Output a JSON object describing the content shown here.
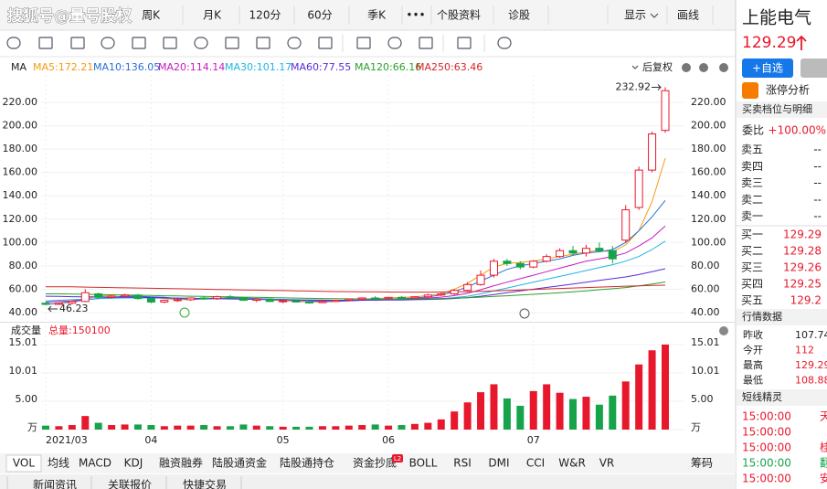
{
  "toolbar": {
    "watermark": "搜狐号@量号股权",
    "periods": [
      "周K",
      "月K",
      "120分",
      "60分",
      "季K"
    ],
    "more": "•••",
    "links": [
      "个股资料",
      "诊股"
    ],
    "display": "显示",
    "draw": "画线"
  },
  "chart_data": {
    "type": "candlestick",
    "indicator": "MA",
    "adjust": "后复权",
    "categories": [
      "2021/03",
      null,
      null,
      null,
      null,
      null,
      null,
      null,
      "04",
      null,
      null,
      null,
      null,
      null,
      null,
      null,
      null,
      null,
      "05",
      null,
      null,
      null,
      null,
      null,
      null,
      null,
      "06",
      null,
      null,
      null,
      null,
      null,
      null,
      null,
      null,
      null,
      null,
      "07",
      null,
      null,
      null,
      null,
      null,
      null,
      null,
      null,
      null,
      null
    ],
    "up_color": "#e8182c",
    "down_color": "#16a34a",
    "candles": [
      {
        "open": 48,
        "high": 49,
        "low": 46.23,
        "close": 47
      },
      {
        "open": 47,
        "high": 48.5,
        "low": 46.5,
        "close": 48
      },
      {
        "open": 48,
        "high": 50,
        "low": 47,
        "close": 49.5
      },
      {
        "open": 49.5,
        "high": 60,
        "low": 49,
        "close": 57
      },
      {
        "open": 56,
        "high": 57,
        "low": 52,
        "close": 53
      },
      {
        "open": 53,
        "high": 55,
        "low": 52,
        "close": 54
      },
      {
        "open": 54,
        "high": 56,
        "low": 53,
        "close": 55
      },
      {
        "open": 55,
        "high": 56,
        "low": 51,
        "close": 52
      },
      {
        "open": 52,
        "high": 53,
        "low": 48,
        "close": 49
      },
      {
        "open": 49,
        "high": 51,
        "low": 48,
        "close": 50.5
      },
      {
        "open": 50.5,
        "high": 52,
        "low": 49,
        "close": 51
      },
      {
        "open": 51,
        "high": 53,
        "low": 50,
        "close": 52.5
      },
      {
        "open": 52.5,
        "high": 54,
        "low": 51,
        "close": 52
      },
      {
        "open": 52,
        "high": 54.5,
        "low": 51,
        "close": 53.5
      },
      {
        "open": 53.5,
        "high": 55,
        "low": 52,
        "close": 52.5
      },
      {
        "open": 52.5,
        "high": 53,
        "low": 50,
        "close": 50.5
      },
      {
        "open": 50.5,
        "high": 52,
        "low": 49,
        "close": 51.5
      },
      {
        "open": 51.5,
        "high": 52,
        "low": 49,
        "close": 49.5
      },
      {
        "open": 49.5,
        "high": 51,
        "low": 48,
        "close": 50
      },
      {
        "open": 50,
        "high": 51,
        "low": 48.5,
        "close": 49
      },
      {
        "open": 49,
        "high": 50,
        "low": 47.5,
        "close": 48.5
      },
      {
        "open": 48.5,
        "high": 50,
        "low": 48,
        "close": 49.5
      },
      {
        "open": 49.5,
        "high": 51,
        "low": 49,
        "close": 50.5
      },
      {
        "open": 50.5,
        "high": 52,
        "low": 50,
        "close": 51.5
      },
      {
        "open": 51.5,
        "high": 53,
        "low": 50.5,
        "close": 52.5
      },
      {
        "open": 52.5,
        "high": 54,
        "low": 51.5,
        "close": 52
      },
      {
        "open": 52,
        "high": 53.5,
        "low": 51,
        "close": 53
      },
      {
        "open": 53,
        "high": 54,
        "low": 52,
        "close": 52.5
      },
      {
        "open": 52.5,
        "high": 54,
        "low": 52,
        "close": 53.5
      },
      {
        "open": 53.5,
        "high": 56,
        "low": 53,
        "close": 55
      },
      {
        "open": 55,
        "high": 57,
        "low": 54,
        "close": 56
      },
      {
        "open": 56,
        "high": 60,
        "low": 55,
        "close": 59
      },
      {
        "open": 59,
        "high": 66,
        "low": 58,
        "close": 64
      },
      {
        "open": 64,
        "high": 76,
        "low": 63,
        "close": 72
      },
      {
        "open": 72,
        "high": 86,
        "low": 70,
        "close": 84
      },
      {
        "open": 84,
        "high": 86,
        "low": 80,
        "close": 82
      },
      {
        "open": 82,
        "high": 84,
        "low": 77,
        "close": 79
      },
      {
        "open": 79,
        "high": 85,
        "low": 78,
        "close": 84
      },
      {
        "open": 84,
        "high": 90,
        "low": 83,
        "close": 88
      },
      {
        "open": 88,
        "high": 95,
        "low": 87,
        "close": 93
      },
      {
        "open": 93,
        "high": 97,
        "low": 89,
        "close": 91
      },
      {
        "open": 91,
        "high": 98,
        "low": 88,
        "close": 95
      },
      {
        "open": 95,
        "high": 100,
        "low": 92,
        "close": 93
      },
      {
        "open": 93,
        "high": 97,
        "low": 82,
        "close": 86
      },
      {
        "open": 102,
        "high": 132,
        "low": 100,
        "close": 128
      },
      {
        "open": 130,
        "high": 165,
        "low": 128,
        "close": 162
      },
      {
        "open": 162,
        "high": 195,
        "low": 160,
        "close": 193
      },
      {
        "open": 196,
        "high": 232.92,
        "low": 194,
        "close": 230
      }
    ],
    "ma": [
      {
        "label": "MA5:172.21",
        "color": "#f39c12",
        "values": [
          47,
          48,
          50,
          52,
          54,
          55,
          55,
          54,
          53,
          52,
          51,
          51,
          52,
          53,
          53,
          52.5,
          52,
          51,
          50,
          49.5,
          49,
          49,
          49.5,
          50.5,
          51.5,
          52,
          52.5,
          53,
          53.5,
          54.5,
          56,
          60,
          65,
          72,
          79,
          82,
          83,
          84,
          86,
          88,
          90,
          92,
          93,
          92,
          98,
          110,
          135,
          172.21
        ]
      },
      {
        "label": "MA10:136.05",
        "color": "#2b6fd6",
        "values": [
          47,
          48,
          49,
          51,
          52,
          53,
          54,
          54,
          53.5,
          53,
          52,
          51.5,
          51.5,
          52,
          52.5,
          52.5,
          52,
          51.5,
          51,
          50.5,
          50,
          49.5,
          49.5,
          50,
          50.5,
          51,
          51.5,
          52,
          52.5,
          53.5,
          55,
          58,
          62,
          67,
          72,
          77,
          80,
          82,
          84,
          86,
          89,
          91,
          92,
          94,
          100,
          110,
          122,
          136.05
        ]
      },
      {
        "label": "MA20:114.14",
        "color": "#c71bbd",
        "values": [
          49,
          49.5,
          50,
          51,
          52,
          52.5,
          53,
          53,
          52.8,
          52.5,
          52.2,
          52,
          52,
          52,
          52,
          51.9,
          51.7,
          51.4,
          51.1,
          50.8,
          50.5,
          50.3,
          50.2,
          50.3,
          50.5,
          50.8,
          51.1,
          51.5,
          52,
          52.5,
          53.2,
          54.5,
          56.5,
          59.5,
          63,
          66,
          69,
          72,
          75,
          78,
          81,
          84,
          86,
          88,
          91,
          97,
          104,
          114.14
        ]
      },
      {
        "label": "MA30:101.17",
        "color": "#1fb5e3",
        "values": [
          50,
          50.5,
          51,
          51.5,
          52,
          52.3,
          52.5,
          52.6,
          52.5,
          52.4,
          52.3,
          52.2,
          52.1,
          52,
          51.9,
          51.8,
          51.6,
          51.4,
          51.2,
          51,
          50.8,
          50.6,
          50.5,
          50.5,
          50.6,
          50.8,
          51,
          51.2,
          51.4,
          51.6,
          52,
          52.8,
          54,
          56,
          58.5,
          61,
          63.5,
          66,
          68.5,
          71,
          73.5,
          76,
          78.5,
          81,
          84,
          88,
          94,
          101.17
        ]
      },
      {
        "label": "MA60:77.55",
        "color": "#5a2bd6",
        "values": [
          54,
          53.8,
          53.6,
          53.5,
          53.4,
          53.3,
          53.2,
          53,
          52.8,
          52.6,
          52.4,
          52.2,
          52,
          51.8,
          51.6,
          51.4,
          51.2,
          51,
          50.9,
          50.8,
          50.7,
          50.6,
          50.5,
          50.5,
          50.5,
          50.6,
          50.7,
          50.8,
          51,
          51.2,
          51.5,
          52,
          52.8,
          54,
          55.5,
          57,
          58.5,
          60,
          61.5,
          63,
          64.5,
          66,
          67.5,
          69,
          70.5,
          72.5,
          75,
          77.55
        ]
      },
      {
        "label": "MA120:66.16",
        "color": "#2ca02c",
        "values": [
          56,
          56,
          55.8,
          55.6,
          55.4,
          55.2,
          55,
          54.8,
          54.6,
          54.4,
          54.2,
          54,
          53.8,
          53.6,
          53.4,
          53.2,
          53,
          52.8,
          52.6,
          52.4,
          52.2,
          52,
          51.9,
          51.8,
          51.7,
          51.6,
          51.6,
          51.6,
          51.7,
          51.8,
          52,
          52.3,
          52.7,
          53.2,
          53.8,
          54.4,
          55,
          55.6,
          56.3,
          57,
          57.8,
          58.6,
          59.5,
          60.4,
          61.4,
          62.8,
          64.4,
          66.16
        ]
      },
      {
        "label": "MA250:63.46",
        "color": "#d62728",
        "values": [
          62,
          62,
          62,
          61.8,
          61.6,
          61.4,
          61.2,
          61,
          60.8,
          60.6,
          60.4,
          60.2,
          60,
          59.8,
          59.6,
          59.4,
          59.2,
          59,
          58.8,
          58.6,
          58.4,
          58.2,
          58,
          57.9,
          57.8,
          57.7,
          57.6,
          57.5,
          57.5,
          57.5,
          57.6,
          57.7,
          57.9,
          58.2,
          58.6,
          59,
          59.4,
          59.8,
          60.2,
          60.6,
          61,
          61.4,
          61.8,
          62.2,
          62.6,
          62.9,
          63.2,
          63.46
        ]
      }
    ],
    "ylim": [
      33.7,
      243.5
    ],
    "yticks": [
      {
        "value": 40,
        "label": "40.00"
      },
      {
        "value": 60,
        "label": "60.00"
      },
      {
        "value": 80,
        "label": "80.00"
      },
      {
        "value": 100,
        "label": "100.00"
      },
      {
        "value": 120,
        "label": "120.00"
      },
      {
        "value": 140,
        "label": "140.00"
      },
      {
        "value": 160,
        "label": "160.00"
      },
      {
        "value": 180,
        "label": "180.00"
      },
      {
        "value": 200,
        "label": "200.00"
      },
      {
        "value": 220,
        "label": "220.00"
      }
    ],
    "grid": true,
    "volume": {
      "title": "成交量",
      "total_label": "总量:150100",
      "values": [
        0.7,
        0.6,
        0.8,
        2.4,
        1.2,
        0.8,
        0.9,
        0.9,
        0.8,
        0.6,
        0.7,
        0.7,
        0.8,
        0.6,
        0.6,
        0.9,
        0.7,
        0.6,
        0.5,
        0.5,
        0.5,
        0.6,
        0.6,
        0.7,
        0.8,
        0.9,
        0.7,
        0.8,
        1.0,
        1.2,
        1.8,
        3.2,
        4.8,
        6.6,
        8.0,
        5.5,
        4.2,
        6.8,
        8.0,
        6.5,
        5.4,
        5.8,
        4.4,
        6.0,
        8.5,
        11.5,
        14.0,
        15.01
      ],
      "ylim": [
        0,
        16.46
      ],
      "yticks": [
        {
          "value": 0,
          "label": "万"
        },
        {
          "value": 5,
          "label": "5.00"
        },
        10.01,
        15.01
      ]
    }
  },
  "tabs": {
    "items": [
      "VOL",
      "均线",
      "MACD",
      "KDJ",
      "融资融券",
      "陆股通资金",
      "陆股通持仓",
      "资金抄底",
      "BOLL",
      "RSI",
      "DMI",
      "CCI",
      "W&R",
      "VR",
      "筹码"
    ],
    "badge": "L2"
  },
  "bottom_tabs": [
    "新闻资讯",
    "关联报价",
    "快捷交易"
  ],
  "quote": {
    "name": "上能电气",
    "price": 129.29,
    "add_button": "+自选",
    "limit_up": "涨停分析",
    "book_title": "买卖档位与明细",
    "ratio_label": "委比",
    "ratio": "+100.00%",
    "asks": [
      {
        "label": "卖五",
        "value": "--"
      },
      {
        "label": "卖四",
        "value": "--"
      },
      {
        "label": "卖三",
        "value": "--"
      },
      {
        "label": "卖二",
        "value": "--"
      },
      {
        "label": "卖一",
        "value": "--"
      }
    ],
    "bids": [
      {
        "label": "买一",
        "value": 129.29
      },
      {
        "label": "买二",
        "value": 129.28
      },
      {
        "label": "买三",
        "value": 129.26
      },
      {
        "label": "买四",
        "value": 129.25
      },
      {
        "label": "买五",
        "value": 129.2
      }
    ],
    "market_title": "行情数据",
    "market": [
      {
        "label": "昨收",
        "value": 107.74
      },
      {
        "label": "今开",
        "value": 112
      },
      {
        "label": "最高",
        "value": 129.29
      },
      {
        "label": "最低",
        "value": 108.88
      }
    ],
    "sprite_title": "短线精灵",
    "sprite": [
      {
        "time": "15:00:00",
        "text": "天"
      },
      {
        "time": "15:00:00",
        "text": ""
      },
      {
        "time": "15:00:00",
        "text": "桂"
      },
      {
        "time": "15:00:00",
        "text": "翻"
      },
      {
        "time": "15:00:00",
        "text": "安"
      }
    ]
  }
}
